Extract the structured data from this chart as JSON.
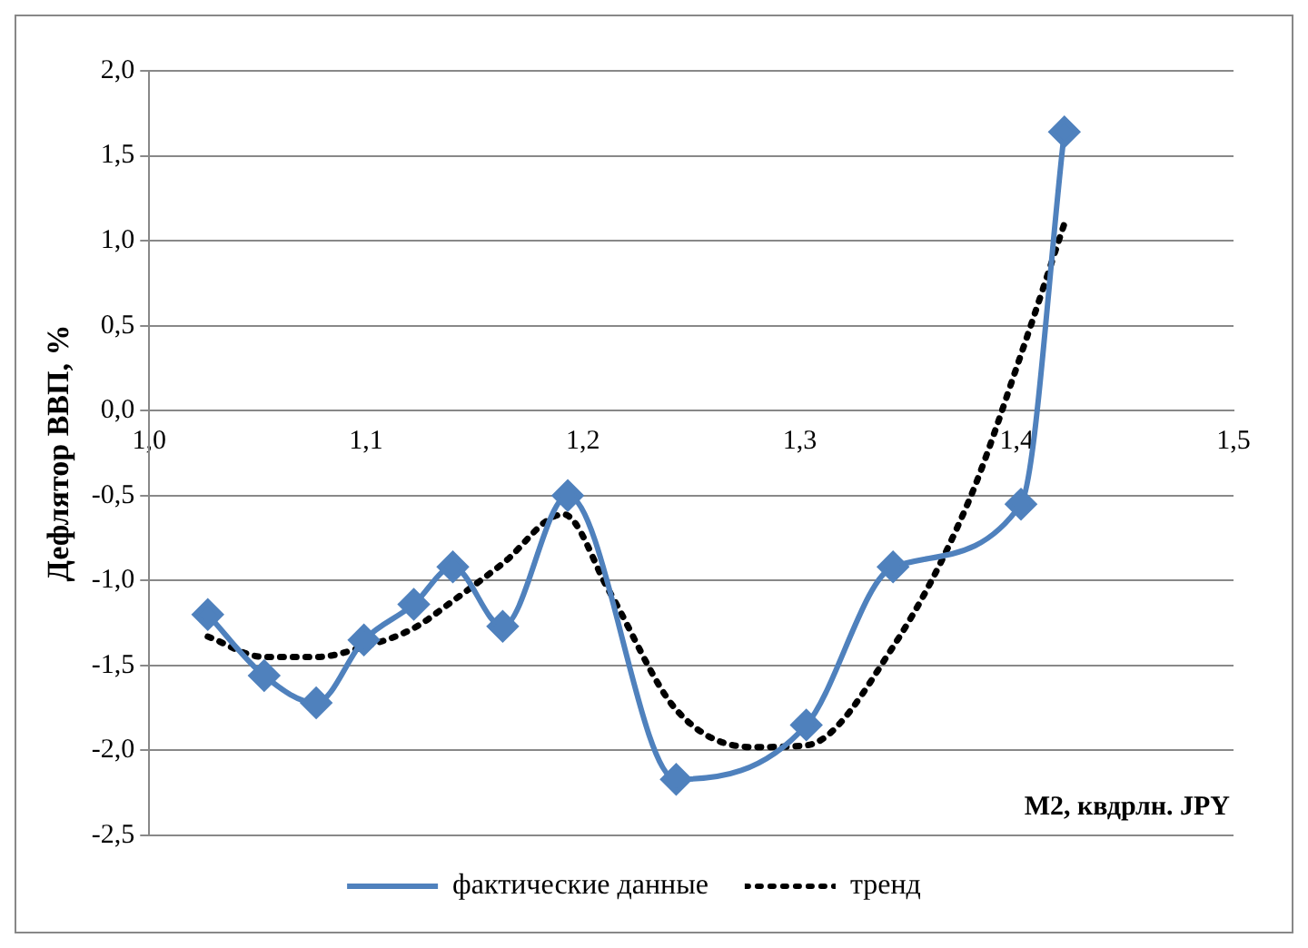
{
  "chart_data": {
    "type": "line",
    "xlabel": "M2, квдрлн. JPY",
    "ylabel": "Дефлятор ВВП, %",
    "xlim": [
      1.0,
      1.5
    ],
    "xticks": [
      {
        "value": 1.0,
        "label": "1,0"
      },
      {
        "value": 1.1,
        "label": "1,1"
      },
      {
        "value": 1.2,
        "label": "1,2"
      },
      {
        "value": 1.3,
        "label": "1,3"
      },
      {
        "value": 1.4,
        "label": "1,4"
      },
      {
        "value": 1.5,
        "label": "1,5"
      }
    ],
    "ylim": [
      -2.5,
      2.0
    ],
    "yticks": [
      {
        "value": -2.5,
        "label": "-2,5"
      },
      {
        "value": -2.0,
        "label": "-2,0"
      },
      {
        "value": -1.5,
        "label": "-1,5"
      },
      {
        "value": -1.0,
        "label": "-1,0"
      },
      {
        "value": -0.5,
        "label": "-0,5"
      },
      {
        "value": 0,
        "label": "0,0"
      },
      {
        "value": 0.5,
        "label": "0,5"
      },
      {
        "value": 1.0,
        "label": "1,0"
      },
      {
        "value": 1.5,
        "label": "1,5"
      },
      {
        "value": 2.0,
        "label": "2,0"
      }
    ],
    "grid": "y",
    "legend": "bottom",
    "series": [
      {
        "name": "фактические данные",
        "color": "#4f81bd",
        "marker": "diamond",
        "line_style": "solid",
        "x": [
          1.027,
          1.053,
          1.077,
          1.099,
          1.122,
          1.14,
          1.163,
          1.193,
          1.243,
          1.303,
          1.343,
          1.402,
          1.422
        ],
        "values": [
          -1.2,
          -1.56,
          -1.72,
          -1.35,
          -1.14,
          -0.92,
          -1.27,
          -0.5,
          -2.17,
          -1.85,
          -0.92,
          -0.55,
          1.64
        ]
      },
      {
        "name": "тренд",
        "color": "#000000",
        "marker": "none",
        "line_style": "dotted",
        "x": [
          1.027,
          1.053,
          1.077,
          1.099,
          1.122,
          1.14,
          1.163,
          1.191,
          1.212,
          1.243,
          1.278,
          1.303,
          1.343,
          1.378,
          1.402,
          1.422
        ],
        "values": [
          -1.33,
          -1.45,
          -1.45,
          -1.39,
          -1.28,
          -1.12,
          -0.9,
          -0.61,
          -1.06,
          -1.76,
          -1.98,
          -1.97,
          -1.39,
          -0.53,
          0.33,
          1.1
        ]
      }
    ]
  }
}
